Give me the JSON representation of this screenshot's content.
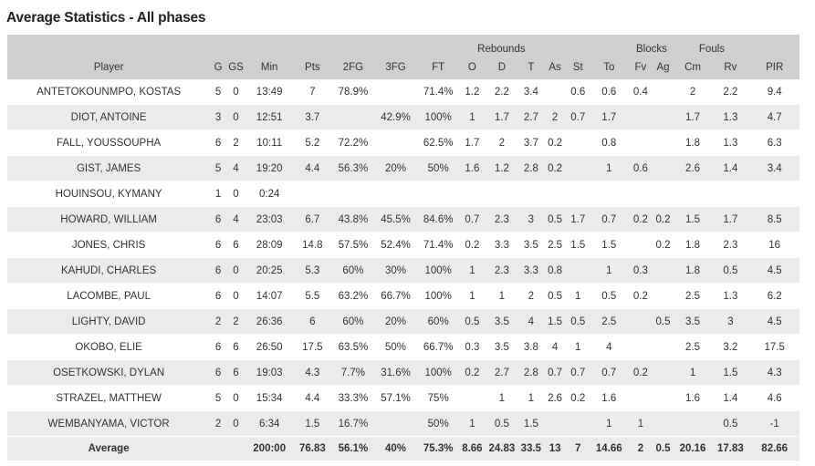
{
  "title": "Average Statistics - All phases",
  "groups": {
    "rebounds": "Rebounds",
    "blocks": "Blocks",
    "fouls": "Fouls"
  },
  "columns": [
    "Player",
    "G",
    "GS",
    "Min",
    "Pts",
    "2FG",
    "3FG",
    "FT",
    "O",
    "D",
    "T",
    "As",
    "St",
    "To",
    "Fv",
    "Ag",
    "Cm",
    "Rv",
    "PIR"
  ],
  "rows": [
    [
      "ANTETOKOUNMPO, KOSTAS",
      "5",
      "0",
      "13:49",
      "7",
      "78.9%",
      "",
      "71.4%",
      "1.2",
      "2.2",
      "3.4",
      "",
      "0.6",
      "0.6",
      "0.4",
      "",
      "2",
      "2.2",
      "9.4"
    ],
    [
      "DIOT, ANTOINE",
      "3",
      "0",
      "12:51",
      "3.7",
      "",
      "42.9%",
      "100%",
      "1",
      "1.7",
      "2.7",
      "2",
      "0.7",
      "1.7",
      "",
      "",
      "1.7",
      "1.3",
      "4.7"
    ],
    [
      "FALL, YOUSSOUPHA",
      "6",
      "2",
      "10:11",
      "5.2",
      "72.2%",
      "",
      "62.5%",
      "1.7",
      "2",
      "3.7",
      "0.2",
      "",
      "0.8",
      "",
      "",
      "1.8",
      "1.3",
      "6.3"
    ],
    [
      "GIST, JAMES",
      "5",
      "4",
      "19:20",
      "4.4",
      "56.3%",
      "20%",
      "50%",
      "1.6",
      "1.2",
      "2.8",
      "0.2",
      "",
      "1",
      "0.6",
      "",
      "2.6",
      "1.4",
      "3.4"
    ],
    [
      "HOUINSOU, KYMANY",
      "1",
      "0",
      "0:24",
      "",
      "",
      "",
      "",
      "",
      "",
      "",
      "",
      "",
      "",
      "",
      "",
      "",
      "",
      ""
    ],
    [
      "HOWARD, WILLIAM",
      "6",
      "4",
      "23:03",
      "6.7",
      "43.8%",
      "45.5%",
      "84.6%",
      "0.7",
      "2.3",
      "3",
      "0.5",
      "1.7",
      "0.7",
      "0.2",
      "0.2",
      "1.5",
      "1.7",
      "8.5"
    ],
    [
      "JONES, CHRIS",
      "6",
      "6",
      "28:09",
      "14.8",
      "57.5%",
      "52.4%",
      "71.4%",
      "0.2",
      "3.3",
      "3.5",
      "2.5",
      "1.5",
      "1.5",
      "",
      "0.2",
      "1.8",
      "2.3",
      "16"
    ],
    [
      "KAHUDI, CHARLES",
      "6",
      "0",
      "20:25",
      "5.3",
      "60%",
      "30%",
      "100%",
      "1",
      "2.3",
      "3.3",
      "0.8",
      "",
      "1",
      "0.3",
      "",
      "1.8",
      "0.5",
      "4.5"
    ],
    [
      "LACOMBE, PAUL",
      "6",
      "0",
      "14:07",
      "5.5",
      "63.2%",
      "66.7%",
      "100%",
      "1",
      "1",
      "2",
      "0.5",
      "1",
      "0.5",
      "0.2",
      "",
      "2.5",
      "1.3",
      "6.2"
    ],
    [
      "LIGHTY, DAVID",
      "2",
      "2",
      "26:36",
      "6",
      "60%",
      "20%",
      "60%",
      "0.5",
      "3.5",
      "4",
      "1.5",
      "0.5",
      "2.5",
      "",
      "0.5",
      "3.5",
      "3",
      "4.5"
    ],
    [
      "OKOBO, ELIE",
      "6",
      "6",
      "26:50",
      "17.5",
      "63.5%",
      "50%",
      "66.7%",
      "0.3",
      "3.5",
      "3.8",
      "4",
      "1",
      "4",
      "",
      "",
      "2.5",
      "3.2",
      "17.5"
    ],
    [
      "OSETKOWSKI, DYLAN",
      "6",
      "6",
      "19:03",
      "4.3",
      "7.7%",
      "31.6%",
      "100%",
      "0.2",
      "2.7",
      "2.8",
      "0.7",
      "0.7",
      "0.7",
      "0.2",
      "",
      "1",
      "1.5",
      "4.3"
    ],
    [
      "STRAZEL, MATTHEW",
      "5",
      "0",
      "15:34",
      "4.4",
      "33.3%",
      "57.1%",
      "75%",
      "",
      "1",
      "1",
      "2.6",
      "0.2",
      "1.6",
      "",
      "",
      "1.6",
      "1.4",
      "4.6"
    ],
    [
      "WEMBANYAMA, VICTOR",
      "2",
      "0",
      "6:34",
      "1.5",
      "16.7%",
      "",
      "50%",
      "1",
      "0.5",
      "1.5",
      "",
      "",
      "1",
      "1",
      "",
      "",
      "0.5",
      "-1"
    ]
  ],
  "average": [
    "Average",
    "",
    "",
    "200:00",
    "76.83",
    "56.1%",
    "40%",
    "75.3%",
    "8.66",
    "24.83",
    "33.5",
    "13",
    "7",
    "14.66",
    "2",
    "0.5",
    "20.16",
    "17.83",
    "82.66"
  ]
}
